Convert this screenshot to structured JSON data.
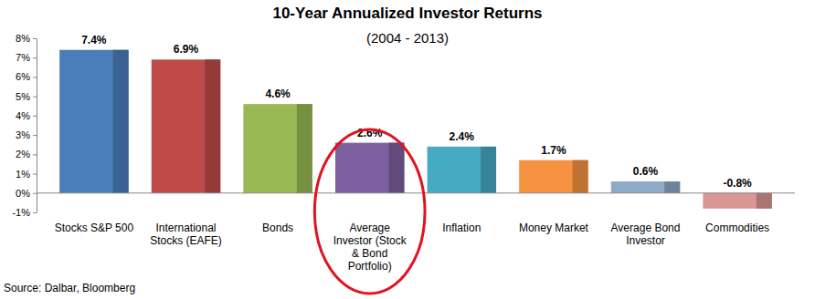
{
  "chart_data": {
    "type": "bar",
    "title": "10-Year Annualized Investor Returns",
    "subtitle": "(2004 - 2013)",
    "source": "Source: Dalbar, Bloomberg",
    "categories": [
      "Stocks S&P 500",
      "International Stocks (EAFE)",
      "Bonds",
      "Average Investor (Stock & Bond Portfolio)",
      "Inflation",
      "Money Market",
      "Average Bond Investor",
      "Commodities"
    ],
    "values": [
      7.4,
      6.9,
      4.6,
      2.6,
      2.4,
      1.7,
      0.6,
      -0.8
    ],
    "value_labels": [
      "7.4%",
      "6.9%",
      "4.6%",
      "2.6%",
      "2.4%",
      "1.7%",
      "0.6%",
      "-0.8%"
    ],
    "colors": [
      "#4a7ebb",
      "#be4b48",
      "#98b954",
      "#7d60a0",
      "#46aac5",
      "#f69240",
      "#8eaac6",
      "#d99694"
    ],
    "ylim": [
      -1,
      8
    ],
    "yticks": [
      {
        "value": -1,
        "label": "-1%"
      },
      {
        "value": 0,
        "label": "0%"
      },
      {
        "value": 1,
        "label": "1%"
      },
      {
        "value": 2,
        "label": "2%"
      },
      {
        "value": 3,
        "label": "3%"
      },
      {
        "value": 4,
        "label": "4%"
      },
      {
        "value": 5,
        "label": "5%"
      },
      {
        "value": 6,
        "label": "6%"
      },
      {
        "value": 7,
        "label": "7%"
      },
      {
        "value": 8,
        "label": "8%"
      }
    ],
    "grid": false,
    "data_labels": true
  }
}
